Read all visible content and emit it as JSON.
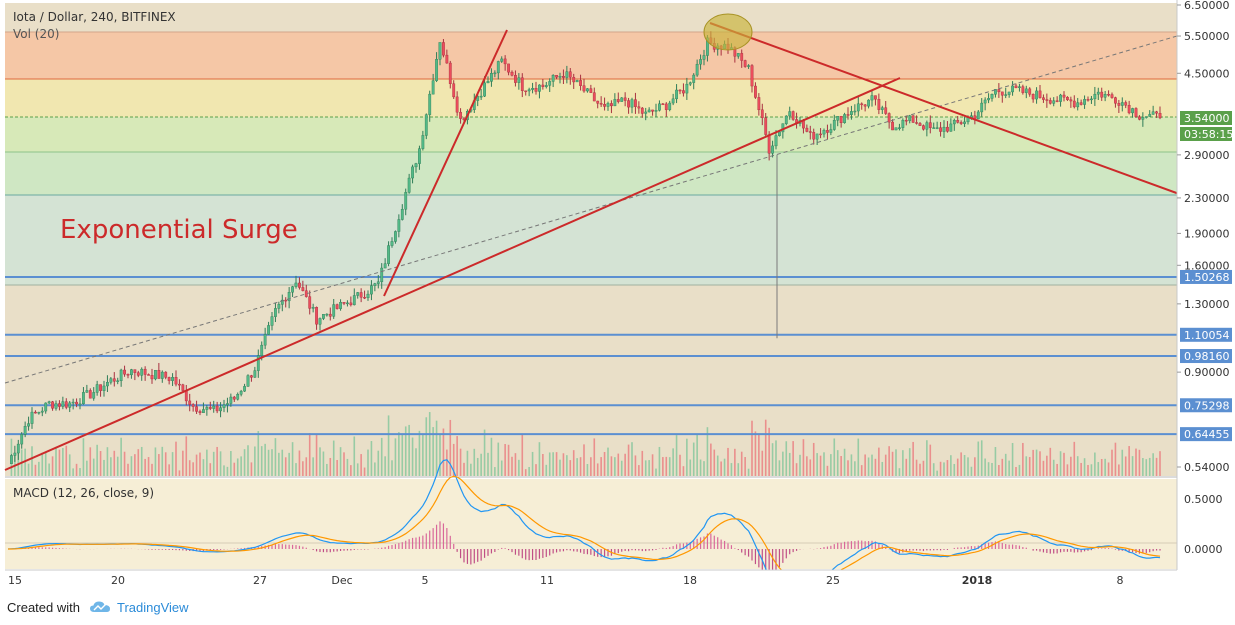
{
  "header": {
    "symbol_line": "Iota / Dollar, 240, BITFINEX",
    "volume_label": "Vol (20)",
    "macd_label": "MACD (12, 26, close, 9)"
  },
  "annotation": {
    "text": "Exponential Surge",
    "color": "#cc2a2a"
  },
  "price_axis": {
    "ticks": [
      "6.50000",
      "5.50000",
      "4.50000",
      "2.90000",
      "2.30000",
      "1.90000",
      "1.60000",
      "1.30000",
      "0.90000",
      "0.54000"
    ],
    "current_price": "3.54000",
    "countdown": "03:58:15",
    "level_labels": [
      "1.50268",
      "1.10054",
      "0.98160",
      "0.75298",
      "0.64455"
    ]
  },
  "macd_axis": {
    "ticks": [
      "0.5000",
      "0.0000"
    ]
  },
  "time_axis": {
    "ticks": [
      "15",
      "20",
      "27",
      "Dec",
      "5",
      "11",
      "18",
      "25",
      "2018",
      "8"
    ]
  },
  "colors": {
    "trendline": "#cc2a2a",
    "horizontal_level": "#5b8fd1",
    "up_candle": "#53b987",
    "down_candle": "#eb4d5c",
    "macd_line": "#2196f3",
    "signal_line": "#ff9800",
    "highlight_ellipse": "#c9b43a"
  },
  "footer": {
    "created_with": "Created with",
    "brand": "TradingView"
  },
  "chart_data": {
    "type": "candlestick",
    "title": "Iota / Dollar, 240, BITFINEX",
    "y_scale": "log",
    "ylim": [
      0.5,
      6.7
    ],
    "close_points": [
      {
        "x": "Nov 15",
        "y": 0.55
      },
      {
        "x": "Nov 16",
        "y": 0.7
      },
      {
        "x": "Nov 17",
        "y": 0.76
      },
      {
        "x": "Nov 18",
        "y": 0.76
      },
      {
        "x": "Nov 19",
        "y": 0.8
      },
      {
        "x": "Nov 20",
        "y": 0.86
      },
      {
        "x": "Nov 21",
        "y": 0.91
      },
      {
        "x": "Nov 22",
        "y": 0.89
      },
      {
        "x": "Nov 23",
        "y": 0.87
      },
      {
        "x": "Nov 24",
        "y": 0.75
      },
      {
        "x": "Nov 25",
        "y": 0.73
      },
      {
        "x": "Nov 26",
        "y": 0.78
      },
      {
        "x": "Nov 27",
        "y": 0.92
      },
      {
        "x": "Nov 28",
        "y": 1.25
      },
      {
        "x": "Nov 29",
        "y": 1.48
      },
      {
        "x": "Nov 30",
        "y": 1.2
      },
      {
        "x": "Dec 1",
        "y": 1.27
      },
      {
        "x": "Dec 2",
        "y": 1.35
      },
      {
        "x": "Dec 3",
        "y": 1.45
      },
      {
        "x": "Dec 4",
        "y": 2.1
      },
      {
        "x": "Dec 5",
        "y": 3.0
      },
      {
        "x": "Dec 6",
        "y": 5.4
      },
      {
        "x": "Dec 7",
        "y": 3.5
      },
      {
        "x": "Dec 8",
        "y": 4.1
      },
      {
        "x": "Dec 9",
        "y": 4.8
      },
      {
        "x": "Dec 10",
        "y": 4.2
      },
      {
        "x": "Dec 11",
        "y": 4.2
      },
      {
        "x": "Dec 12",
        "y": 4.5
      },
      {
        "x": "Dec 13",
        "y": 4.1
      },
      {
        "x": "Dec 14",
        "y": 3.7
      },
      {
        "x": "Dec 15",
        "y": 3.9
      },
      {
        "x": "Dec 16",
        "y": 3.6
      },
      {
        "x": "Dec 17",
        "y": 3.8
      },
      {
        "x": "Dec 18",
        "y": 4.2
      },
      {
        "x": "Dec 19",
        "y": 5.3
      },
      {
        "x": "Dec 20",
        "y": 5.2
      },
      {
        "x": "Dec 21",
        "y": 4.6
      },
      {
        "x": "Dec 22",
        "y": 3.0
      },
      {
        "x": "Dec 23",
        "y": 3.7
      },
      {
        "x": "Dec 24",
        "y": 3.2
      },
      {
        "x": "Dec 25",
        "y": 3.4
      },
      {
        "x": "Dec 26",
        "y": 3.7
      },
      {
        "x": "Dec 27",
        "y": 3.9
      },
      {
        "x": "Dec 28",
        "y": 3.4
      },
      {
        "x": "Dec 29",
        "y": 3.5
      },
      {
        "x": "Dec 30",
        "y": 3.3
      },
      {
        "x": "Dec 31",
        "y": 3.4
      },
      {
        "x": "Jan 1",
        "y": 3.6
      },
      {
        "x": "Jan 2",
        "y": 4.1
      },
      {
        "x": "Jan 3",
        "y": 4.1
      },
      {
        "x": "Jan 4",
        "y": 4.0
      },
      {
        "x": "Jan 5",
        "y": 3.9
      },
      {
        "x": "Jan 6",
        "y": 3.85
      },
      {
        "x": "Jan 7",
        "y": 4.05
      },
      {
        "x": "Jan 8",
        "y": 3.9
      },
      {
        "x": "Jan 9",
        "y": 3.6
      },
      {
        "x": "Jan 10",
        "y": 3.54
      }
    ],
    "horizontal_levels": [
      1.50268,
      1.10054,
      0.9816,
      0.75298,
      0.64455
    ],
    "macd_ylim": [
      -0.2,
      0.7
    ],
    "grid": true,
    "legend": "none"
  }
}
